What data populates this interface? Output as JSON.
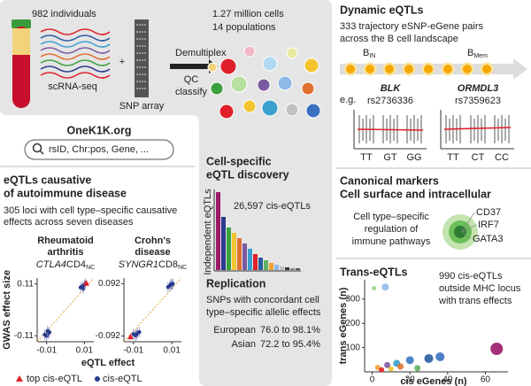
{
  "workflow": {
    "individuals": "982 individuals",
    "scrna": "scRNA-seq",
    "plus": "+",
    "snp_array": "SNP array",
    "steps": [
      "Demultiplex",
      "QC",
      "classify"
    ],
    "cells": "1.27 million cells",
    "populations": "14 populations"
  },
  "portal": {
    "site": "OneK1K.org",
    "search_placeholder": "rsID, Chr:pos, Gene, ..."
  },
  "autoimmune": {
    "title": [
      "eQTLs causative",
      "of autoimmune disease"
    ],
    "description": [
      "305 loci with cell type–specific causative",
      "effects across seven diseases"
    ],
    "y_label": "GWAS effect size",
    "x_label": "eQTL effect",
    "legend": [
      {
        "label": "top cis-eQTL",
        "color": "#e0202a"
      },
      {
        "label": "cis-eQTL",
        "color": "#2a3a8c"
      }
    ],
    "plots": [
      {
        "title": [
          "Rheumatoid",
          "arthritis"
        ],
        "gene": "CTLA4",
        "cell": "CD4",
        "cell_sub": "NC",
        "xlim": [
          -0.015,
          0.015
        ],
        "ylim": [
          -0.135,
          0.135
        ],
        "xticks": [
          -0.01,
          0.01
        ],
        "yticks": [
          -0.11,
          0.11
        ],
        "x": [
          -0.011,
          -0.01,
          -0.009,
          -0.0085,
          -0.0095,
          0.008,
          0.009,
          0.0095,
          0.01,
          0.0105
        ],
        "y": [
          -0.105,
          -0.11,
          -0.1,
          -0.095,
          -0.09,
          0.095,
          0.1,
          0.09,
          0.105,
          0.11
        ],
        "top": {
          "x": 0.011,
          "y": 0.114
        }
      },
      {
        "title": [
          "Crohn's",
          "disease"
        ],
        "gene": "SYNGR1",
        "cell": "CD8",
        "cell_sub": "NC",
        "xlim": [
          -0.015,
          0.015
        ],
        "ylim": [
          -0.112,
          0.112
        ],
        "xticks": [
          -0.01,
          0.01
        ],
        "yticks": [
          -0.092,
          0.092
        ],
        "x": [
          -0.01,
          -0.009,
          -0.008,
          -0.007,
          -0.0085,
          0.008,
          0.009,
          0.0095,
          0.01,
          0.0105
        ],
        "y": [
          -0.085,
          -0.09,
          -0.082,
          -0.078,
          -0.088,
          0.08,
          0.085,
          0.09,
          0.088,
          0.092
        ],
        "top": {
          "x": -0.0115,
          "y": -0.094
        }
      }
    ]
  },
  "discovery": {
    "title": [
      "Cell-specific",
      "eQTL discovery"
    ],
    "y_label": "Independent eQTLs",
    "total": "26,597 cis-eQTLs"
  },
  "replication": {
    "title": "Replication",
    "description": [
      "SNPs with concordant cell",
      "type–specific allelic effects"
    ],
    "cohorts": [
      {
        "name": "European",
        "range": "76.0 to 98.1%"
      },
      {
        "name": "Asian",
        "range": "72.2 to 95.4%"
      }
    ]
  },
  "dynamic": {
    "title": "Dynamic eQTLs",
    "description": [
      "333 trajectory eSNP-eGene pairs",
      "across the B cell landscape"
    ],
    "start": {
      "label": "B",
      "sub": "IN"
    },
    "end": {
      "label": "B",
      "sub": "Mem"
    },
    "example_prefix": "e.g.",
    "examples": [
      {
        "gene": "BLK",
        "snp": "rs2736336",
        "genotypes": [
          "TT",
          "GT",
          "GG"
        ]
      },
      {
        "gene": "ORMDL3",
        "snp": "rs7359623",
        "genotypes": [
          "TT",
          "CT",
          "CC"
        ]
      }
    ]
  },
  "markers": {
    "title": [
      "Canonical markers",
      "Cell surface and intracellular"
    ],
    "description": [
      "Cell type–specific",
      "regulation of",
      "immune pathways"
    ],
    "genes": [
      "CD37",
      "IRF7",
      "GATA3"
    ]
  },
  "trans": {
    "title": "Trans-eQTLs",
    "note": [
      "990 cis-eQTLs",
      "outside MHC locus",
      "with trans effects"
    ],
    "chart_data": {
      "type": "scatter",
      "x_label": "cis eGenes (n)",
      "y_label": "trans eGenes (n)",
      "xlim": [
        -4,
        72
      ],
      "ylim": [
        0,
        380
      ],
      "xticks": [
        0,
        20,
        40,
        60
      ],
      "yticks": [
        100,
        200,
        300
      ],
      "x": [
        1,
        7,
        3,
        5,
        8,
        10,
        13,
        15,
        20,
        24,
        30,
        36,
        66
      ],
      "y": [
        345,
        350,
        18,
        8,
        28,
        12,
        35,
        22,
        48,
        15,
        55,
        62,
        95
      ],
      "colors": [
        "#9bd08a",
        "#8fb8e8",
        "#f0a030",
        "#e0202a",
        "#7a5aa0",
        "#f4c430",
        "#3aa0d0",
        "#e07030",
        "#3a7ac0",
        "#60b060",
        "#2a5aa0",
        "#3a70c0",
        "#9a1a6a"
      ]
    }
  },
  "watermark": "知乎 @ffa"
}
